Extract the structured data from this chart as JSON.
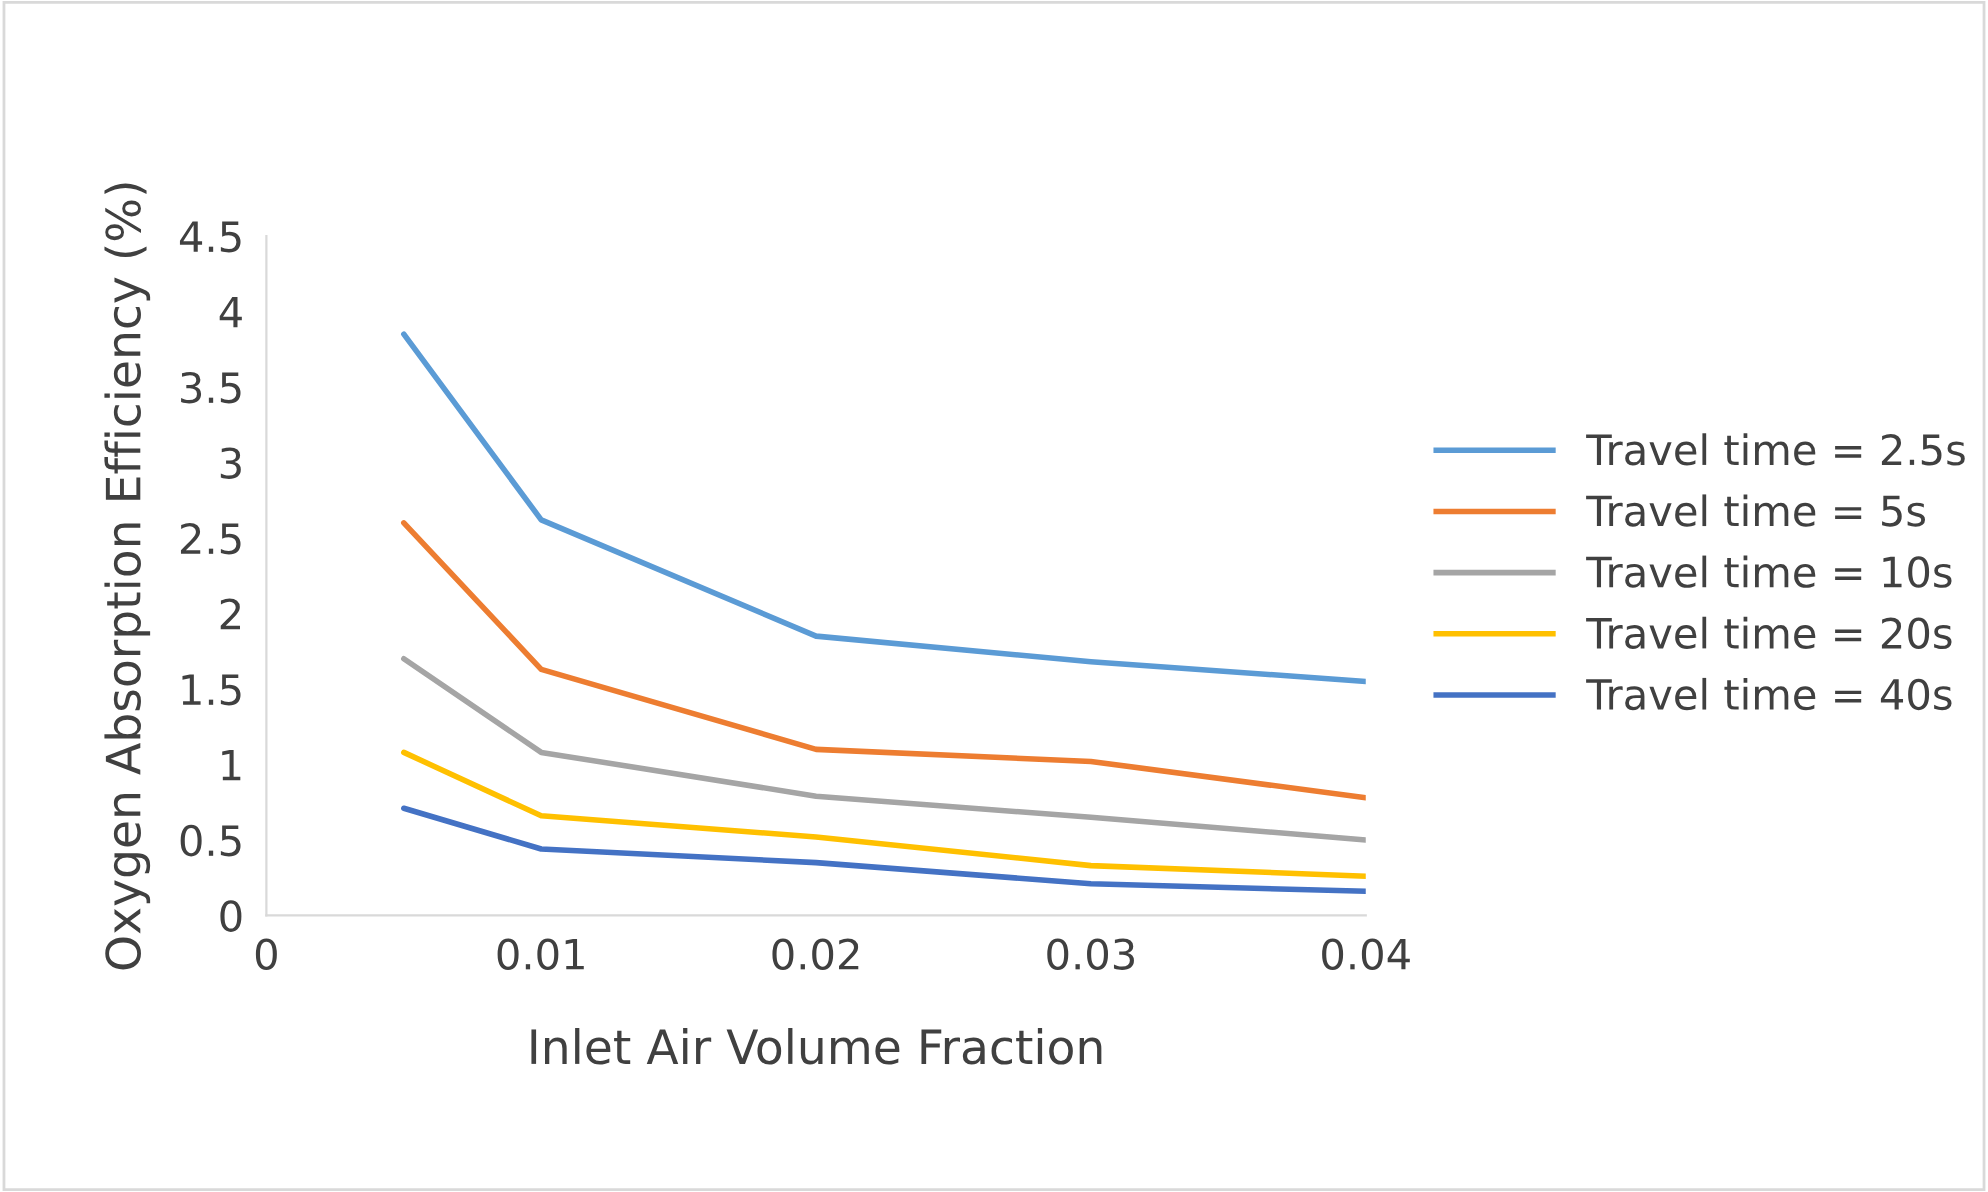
{
  "chart_data": {
    "type": "line",
    "xlabel": "Inlet Air Volume Fraction",
    "ylabel": "Oxygen Absorption Efficiency (%)",
    "x": [
      0.005,
      0.01,
      0.02,
      0.03,
      0.04
    ],
    "series": [
      {
        "name": "Travel time = 2.5s",
        "color": "#5b9bd5",
        "values": [
          3.85,
          2.62,
          1.85,
          1.68,
          1.55
        ]
      },
      {
        "name": "Travel time = 5s",
        "color": "#ed7d31",
        "values": [
          2.6,
          1.63,
          1.1,
          1.02,
          0.78
        ]
      },
      {
        "name": "Travel time = 10s",
        "color": "#a5a5a5",
        "values": [
          1.7,
          1.08,
          0.79,
          0.65,
          0.5
        ]
      },
      {
        "name": "Travel time = 20s",
        "color": "#ffc000",
        "values": [
          1.08,
          0.66,
          0.52,
          0.33,
          0.26
        ]
      },
      {
        "name": "Travel time = 40s",
        "color": "#4472c4",
        "values": [
          0.71,
          0.44,
          0.35,
          0.21,
          0.16
        ]
      }
    ],
    "xlim": [
      0,
      0.04
    ],
    "xticks": [
      0,
      0.01,
      0.02,
      0.03,
      0.04
    ],
    "ylim": [
      0,
      4.5
    ],
    "yticks": [
      0,
      0.5,
      1,
      1.5,
      2,
      2.5,
      3,
      3.5,
      4,
      4.5
    ],
    "grid": false,
    "legend": "right",
    "marker": "none",
    "line_style": "solid"
  }
}
